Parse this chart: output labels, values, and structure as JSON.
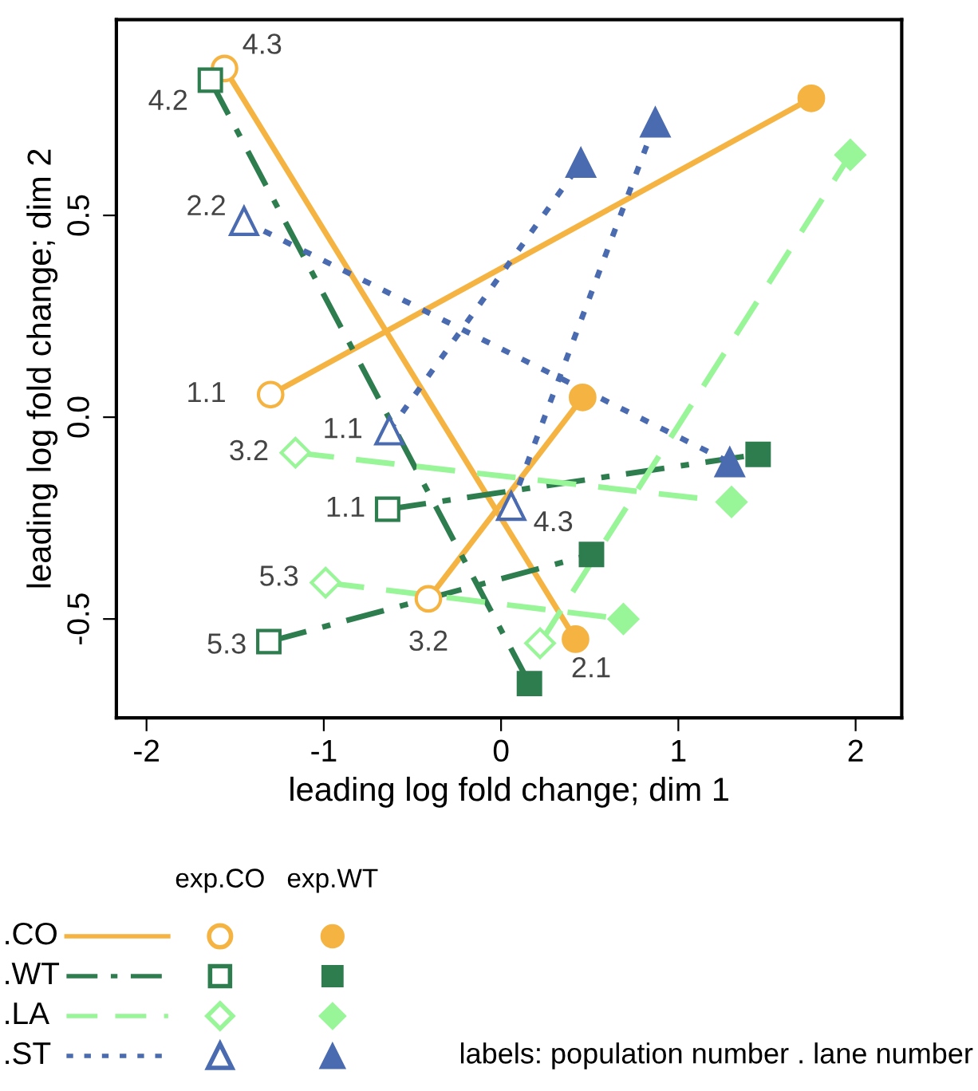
{
  "chart_data": {
    "type": "line",
    "xlabel": "leading log fold change; dim 1",
    "ylabel": "leading log fold change; dim 2",
    "xlim": [
      -2.17,
      2.26
    ],
    "ylim": [
      -0.745,
      0.985
    ],
    "xticks": [
      -2,
      -1,
      0,
      1,
      2
    ],
    "yticks": [
      {
        "value": -0.5,
        "label": "-0.5"
      },
      {
        "value": 0,
        "label": "0.0"
      },
      {
        "value": 0.5,
        "label": "0.5"
      }
    ],
    "grid": false,
    "legend": "bottom",
    "series": [
      {
        "name": ".CO",
        "color": "#f5b342",
        "marker": "circle",
        "line_style": "solid",
        "x": [
          -1.3,
          1.75
        ],
        "values": [
          0.056,
          0.79
        ]
      },
      {
        "color": "#f5b342",
        "marker": "circle",
        "line_style": "solid",
        "x": [
          -1.56,
          0.42
        ],
        "values": [
          0.864,
          -0.55
        ]
      },
      {
        "color": "#f5b342",
        "marker": "circle",
        "line_style": "solid",
        "x": [
          -0.41,
          0.46
        ],
        "values": [
          -0.45,
          0.049
        ]
      },
      {
        "name": ".WT",
        "color": "#2e7d4f",
        "marker": "square",
        "line_style": "dashdot",
        "x": [
          -1.64,
          0.16
        ],
        "values": [
          0.835,
          -0.66
        ]
      },
      {
        "color": "#2e7d4f",
        "marker": "square",
        "line_style": "dashdot",
        "x": [
          -0.64,
          1.45
        ],
        "values": [
          -0.228,
          -0.092
        ]
      },
      {
        "color": "#2e7d4f",
        "marker": "square",
        "line_style": "dashdot",
        "x": [
          -1.31,
          0.51
        ],
        "values": [
          -0.556,
          -0.34
        ]
      },
      {
        "name": ".LA",
        "color": "#98f598",
        "marker": "diamond",
        "line_style": "dashed",
        "x": [
          -1.16,
          1.3
        ],
        "values": [
          -0.088,
          -0.21
        ]
      },
      {
        "color": "#98f598",
        "marker": "diamond",
        "line_style": "dashed",
        "x": [
          -0.99,
          0.69
        ],
        "values": [
          -0.41,
          -0.5
        ]
      },
      {
        "color": "#98f598",
        "marker": "diamond",
        "line_style": "dashed",
        "x": [
          0.22,
          1.97
        ],
        "values": [
          -0.56,
          0.65
        ]
      },
      {
        "name": ".ST",
        "color": "#4a6bb0",
        "marker": "triangle",
        "line_style": "dotted",
        "x": [
          -1.45,
          1.29
        ],
        "values": [
          0.486,
          -0.112
        ]
      },
      {
        "color": "#4a6bb0",
        "marker": "triangle",
        "line_style": "dotted",
        "x": [
          -0.63,
          0.45
        ],
        "values": [
          -0.033,
          0.63
        ]
      },
      {
        "color": "#4a6bb0",
        "marker": "triangle",
        "line_style": "dotted",
        "x": [
          0.057,
          0.87
        ],
        "values": [
          -0.22,
          0.73
        ]
      }
    ],
    "annotations": [
      {
        "text": "1.1",
        "x": -1.3,
        "y": 0.056
      },
      {
        "text": "4.3",
        "x": -1.56,
        "y": 0.864
      },
      {
        "text": "3.2",
        "x": -0.41,
        "y": -0.45
      },
      {
        "text": "4.2",
        "x": -1.64,
        "y": 0.835
      },
      {
        "text": "1.1",
        "x": -0.64,
        "y": -0.228
      },
      {
        "text": "5.3",
        "x": -1.31,
        "y": -0.556
      },
      {
        "text": "3.2",
        "x": -1.16,
        "y": -0.088
      },
      {
        "text": "5.3",
        "x": -0.99,
        "y": -0.41
      },
      {
        "text": "2.1",
        "x": 0.22,
        "y": -0.56
      },
      {
        "text": "2.2",
        "x": -1.45,
        "y": 0.486
      },
      {
        "text": "1.1",
        "x": -0.63,
        "y": -0.033
      },
      {
        "text": "4.3",
        "x": 0.057,
        "y": -0.22
      },
      "exp.CO",
      "exp.WT",
      "labels: population number . lane number"
    ]
  }
}
